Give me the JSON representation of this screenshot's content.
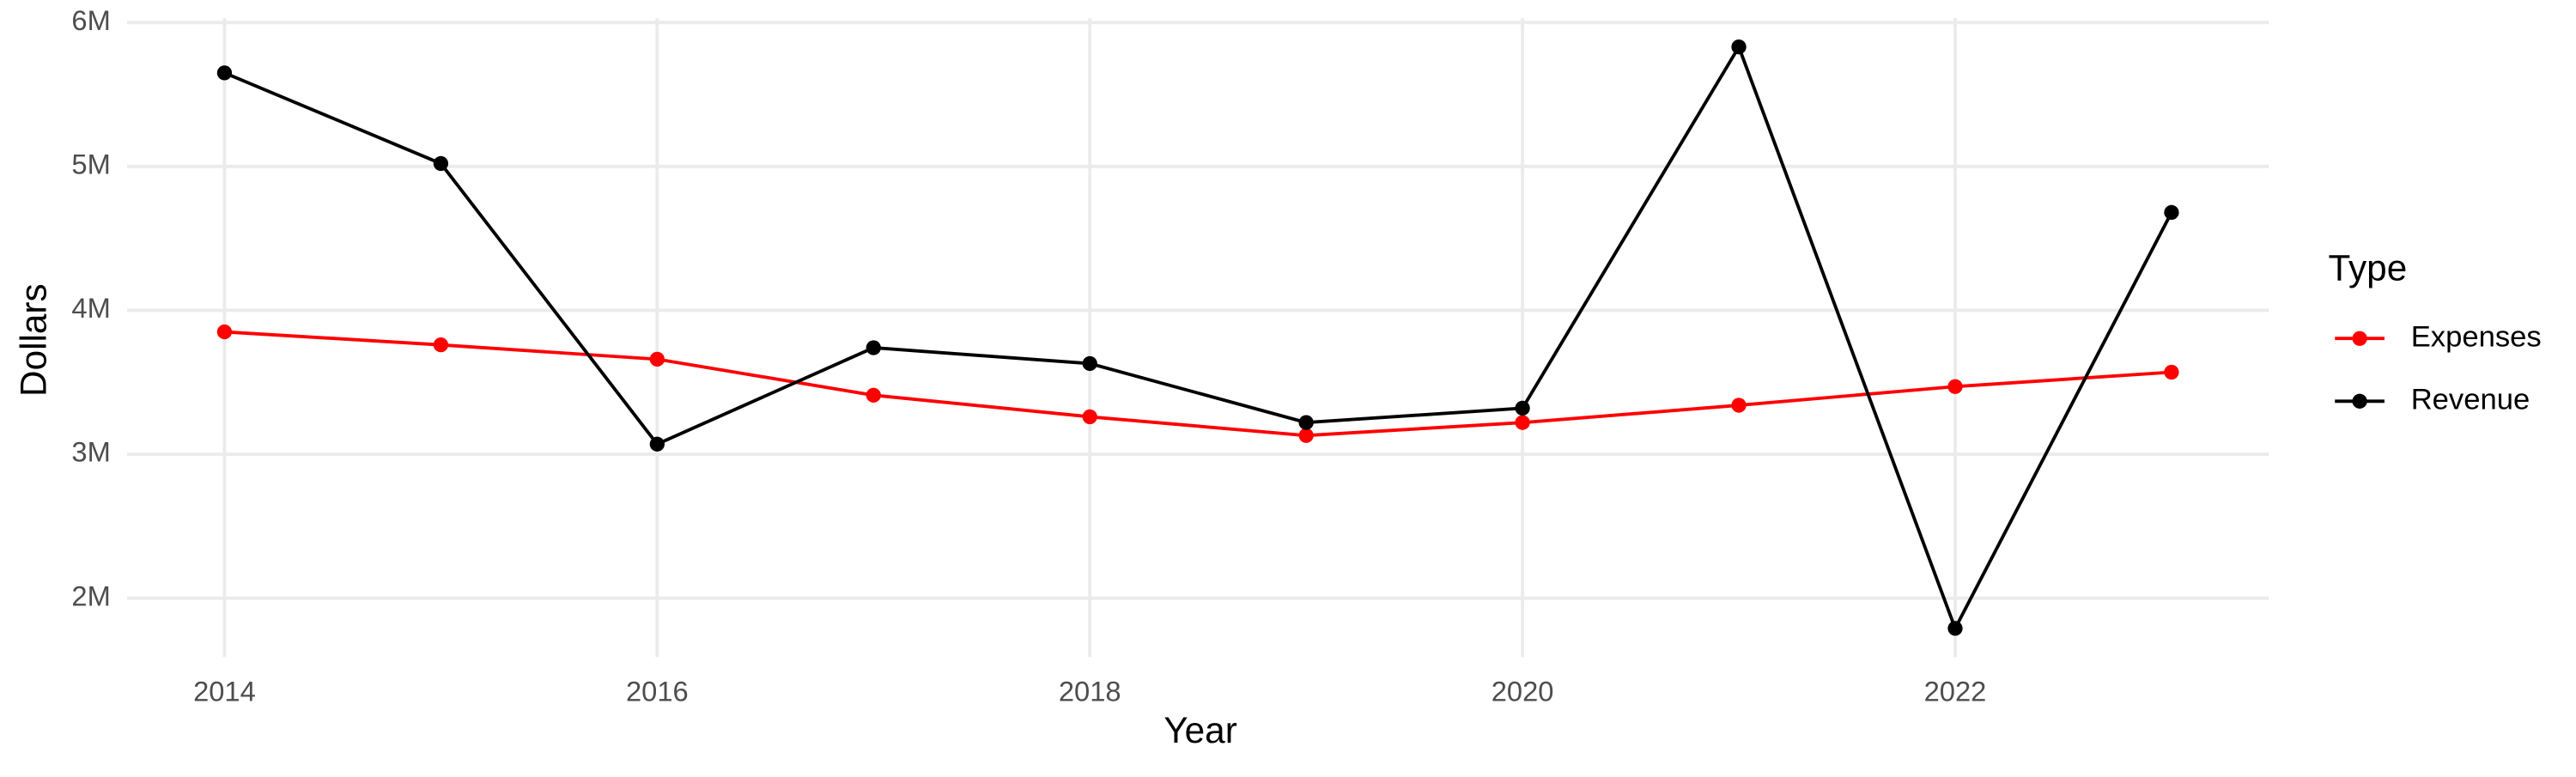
{
  "chart_data": {
    "type": "line",
    "x_label": "Year",
    "y_label": "Dollars",
    "legend_title": "Type",
    "legend_position": "right",
    "grid": true,
    "x": [
      2014,
      2015,
      2016,
      2017,
      2018,
      2019,
      2020,
      2021,
      2022,
      2023
    ],
    "xlim": [
      2013.55,
      2023.45
    ],
    "xticks": [
      2014,
      2016,
      2018,
      2020,
      2022
    ],
    "ylim": [
      1590000,
      6030000
    ],
    "yticks": [
      {
        "value": 2000000,
        "label": "2M"
      },
      {
        "value": 3000000,
        "label": "3M"
      },
      {
        "value": 4000000,
        "label": "4M"
      },
      {
        "value": 5000000,
        "label": "5M"
      },
      {
        "value": 6000000,
        "label": "6M"
      }
    ],
    "series": [
      {
        "name": "Expenses",
        "color": "#ff0000",
        "values": [
          3850000,
          3760000,
          3660000,
          3410000,
          3260000,
          3130000,
          3220000,
          3340000,
          3470000,
          3570000
        ]
      },
      {
        "name": "Revenue",
        "color": "#000000",
        "values": [
          5650000,
          5020000,
          3070000,
          3740000,
          3630000,
          3220000,
          3320000,
          5830000,
          1790000,
          4680000
        ]
      }
    ]
  }
}
